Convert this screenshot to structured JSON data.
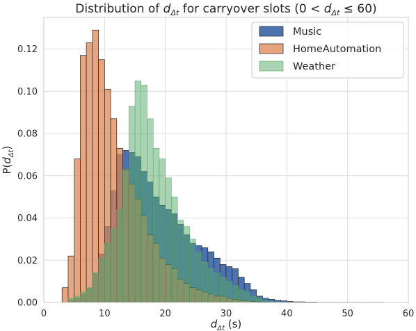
{
  "chart_data": {
    "type": "bar",
    "title_prefix": "Distribution of ",
    "title_symbol": "d",
    "title_subscript": "Δt",
    "title_suffix_1": " for carryover slots (0 < ",
    "title_suffix_2": " ≤ 60)",
    "xlabel_symbol": "d",
    "xlabel_subscript": "Δt",
    "xlabel_unit": " (s)",
    "ylabel_prefix": "P(",
    "ylabel_symbol": "d",
    "ylabel_subscript": "Δt",
    "ylabel_suffix": ")",
    "xlim": [
      0,
      60
    ],
    "ylim": [
      0,
      0.135
    ],
    "xticks": [
      "0",
      "10",
      "20",
      "30",
      "40",
      "50",
      "60"
    ],
    "xtick_values": [
      0,
      10,
      20,
      30,
      40,
      50,
      60
    ],
    "yticks": [
      "0.00",
      "0.02",
      "0.04",
      "0.06",
      "0.08",
      "0.10",
      "0.12"
    ],
    "ytick_values": [
      0,
      0.02,
      0.04,
      0.06,
      0.08,
      0.1,
      0.12
    ],
    "grid": true,
    "legend_position": "top-right",
    "bin_start": 3,
    "bin_width": 1,
    "series": [
      {
        "name": "Music",
        "color": "#4c72b0",
        "values": [
          0.0,
          0.001,
          0.002,
          0.004,
          0.007,
          0.014,
          0.023,
          0.036,
          0.053,
          0.07,
          0.072,
          0.071,
          0.069,
          0.062,
          0.057,
          0.05,
          0.046,
          0.044,
          0.042,
          0.037,
          0.032,
          0.028,
          0.027,
          0.026,
          0.024,
          0.021,
          0.018,
          0.017,
          0.016,
          0.012,
          0.009,
          0.006,
          0.003,
          0.002,
          0.0015,
          0.001,
          0.0008,
          0.0005,
          0.0003,
          0.0003,
          0.0002,
          0.0002,
          0.0001,
          0.0001,
          0.0001,
          0.0001,
          0.0001,
          0.0001,
          0.0001,
          0.0001,
          0.0001,
          0.0001,
          0.0001
        ]
      },
      {
        "name": "HomeAutomation",
        "color": "#dd8452",
        "values": [
          0.007,
          0.022,
          0.068,
          0.117,
          0.123,
          0.129,
          0.115,
          0.101,
          0.087,
          0.073,
          0.063,
          0.056,
          0.049,
          0.041,
          0.032,
          0.028,
          0.021,
          0.018,
          0.016,
          0.011,
          0.009,
          0.007,
          0.006,
          0.005,
          0.004,
          0.003,
          0.003,
          0.002,
          0.0015,
          0.001,
          0.0008,
          0.0005,
          0.0003,
          0.0002,
          0.0001,
          0.0001,
          0.0001,
          0.0001,
          0.0,
          0.0,
          0.0,
          0.0,
          0.0,
          0.0,
          0.0,
          0.0,
          0.0,
          0.0,
          0.0,
          0.0,
          0.0,
          0.0,
          0.0
        ]
      },
      {
        "name": "Weather",
        "color": "#55a868",
        "values": [
          0.0,
          0.002,
          0.003,
          0.005,
          0.007,
          0.014,
          0.021,
          0.028,
          0.035,
          0.044,
          0.063,
          0.093,
          0.105,
          0.103,
          0.087,
          0.073,
          0.068,
          0.059,
          0.05,
          0.039,
          0.036,
          0.03,
          0.024,
          0.019,
          0.016,
          0.014,
          0.012,
          0.01,
          0.008,
          0.006,
          0.005,
          0.003,
          0.002,
          0.001,
          0.0005,
          0.0003,
          0.0,
          0.0,
          0.0,
          0.0,
          0.0,
          0.0,
          0.0,
          0.0,
          0.0,
          0.0,
          0.0,
          0.0,
          0.0,
          0.0,
          0.0,
          0.0,
          0.0
        ]
      }
    ]
  }
}
